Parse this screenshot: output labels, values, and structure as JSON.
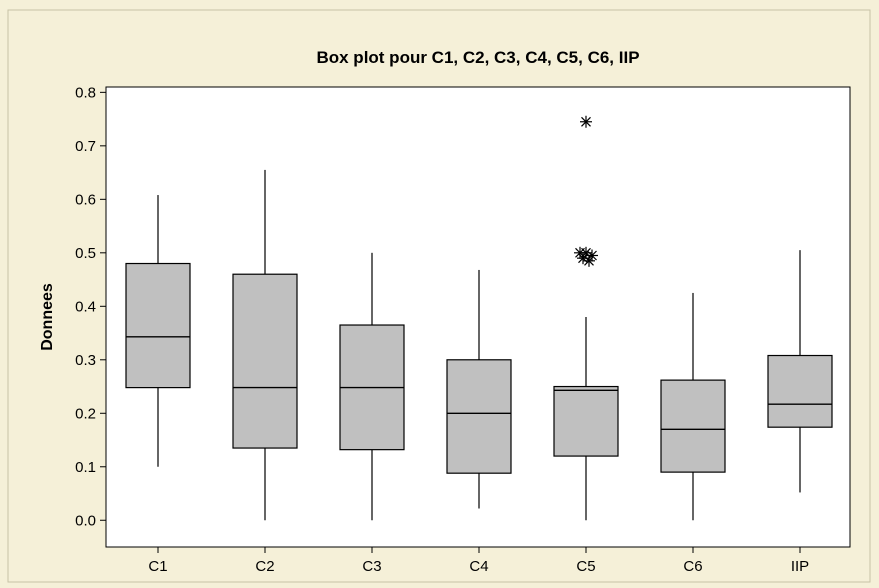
{
  "chart_data": {
    "type": "box",
    "title": "Box plot pour C1, C2, C3, C4, C5, C6, IIP",
    "xlabel": "",
    "ylabel": "Donnees",
    "ylim": [
      -0.05,
      0.81
    ],
    "yticks": [
      0.0,
      0.1,
      0.2,
      0.3,
      0.4,
      0.5,
      0.6,
      0.7,
      0.8
    ],
    "ytick_labels": [
      "0.0",
      "0.1",
      "0.2",
      "0.3",
      "0.4",
      "0.5",
      "0.6",
      "0.7",
      "0.8"
    ],
    "categories": [
      "C1",
      "C2",
      "C3",
      "C4",
      "C5",
      "C6",
      "IIP"
    ],
    "boxes": [
      {
        "name": "C1",
        "whisker_low": 0.1,
        "q1": 0.248,
        "median": 0.343,
        "q3": 0.48,
        "whisker_high": 0.608,
        "outliers": []
      },
      {
        "name": "C2",
        "whisker_low": 0.0,
        "q1": 0.135,
        "median": 0.248,
        "q3": 0.46,
        "whisker_high": 0.655,
        "outliers": []
      },
      {
        "name": "C3",
        "whisker_low": 0.0,
        "q1": 0.132,
        "median": 0.248,
        "q3": 0.365,
        "whisker_high": 0.5,
        "outliers": []
      },
      {
        "name": "C4",
        "whisker_low": 0.022,
        "q1": 0.088,
        "median": 0.2,
        "q3": 0.3,
        "whisker_high": 0.468,
        "outliers": []
      },
      {
        "name": "C5",
        "whisker_low": 0.0,
        "q1": 0.12,
        "median": 0.243,
        "q3": 0.25,
        "whisker_high": 0.38,
        "outliers": [
          0.745,
          0.5,
          0.5,
          0.495,
          0.49,
          0.485
        ]
      },
      {
        "name": "C6",
        "whisker_low": 0.0,
        "q1": 0.09,
        "median": 0.17,
        "q3": 0.262,
        "whisker_high": 0.425,
        "outliers": []
      },
      {
        "name": "IIP",
        "whisker_low": 0.052,
        "q1": 0.174,
        "median": 0.217,
        "q3": 0.308,
        "whisker_high": 0.505,
        "outliers": []
      }
    ],
    "grid": false,
    "legend": "none",
    "box_color": "#c0c0c0",
    "line_color": "#000000",
    "plot_bg": "#ffffff",
    "figure_bg": "#f5f0d8"
  }
}
